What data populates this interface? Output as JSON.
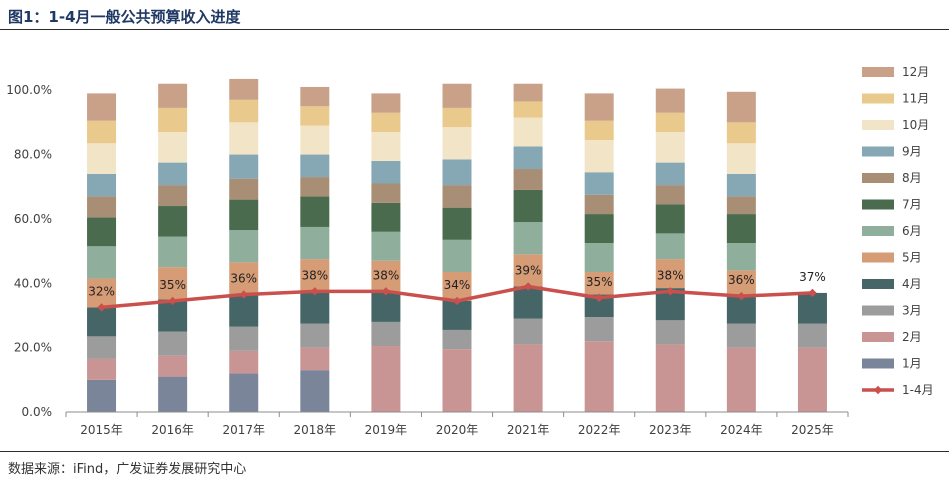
{
  "header": {
    "title": "图1：1-4月一般公共预算收入进度"
  },
  "footer": {
    "source": "数据来源：iFind，广发证券发展研究中心"
  },
  "chart_data": {
    "type": "bar",
    "stacked": true,
    "categories": [
      "2015年",
      "2016年",
      "2017年",
      "2018年",
      "2019年",
      "2020年",
      "2021年",
      "2022年",
      "2023年",
      "2024年",
      "2025年"
    ],
    "y_ticks": [
      "0.0%",
      "20.0%",
      "40.0%",
      "60.0%",
      "80.0%",
      "100.0%"
    ],
    "ylim": [
      0,
      1.1
    ],
    "legend_position": "right",
    "series": [
      {
        "name": "1月",
        "color": "#7b8599",
        "values": [
          0.1,
          0.11,
          0.12,
          0.13,
          0,
          0,
          0,
          0,
          0,
          0,
          0
        ]
      },
      {
        "name": "2月",
        "color": "#c99594",
        "values": [
          0.065,
          0.065,
          0.07,
          0.07,
          0.205,
          0.195,
          0.21,
          0.22,
          0.21,
          0.2,
          0.2
        ]
      },
      {
        "name": "3月",
        "color": "#9c9c9c",
        "values": [
          0.07,
          0.075,
          0.075,
          0.075,
          0.075,
          0.06,
          0.08,
          0.075,
          0.075,
          0.075,
          0.075
        ]
      },
      {
        "name": "4月",
        "color": "#456567",
        "values": [
          0.09,
          0.1,
          0.1,
          0.1,
          0.09,
          0.09,
          0.1,
          0.07,
          0.1,
          0.085,
          0.095
        ]
      },
      {
        "name": "5月",
        "color": "#d69c75",
        "values": [
          0.09,
          0.1,
          0.1,
          0.1,
          0.1,
          0.09,
          0.1,
          0.07,
          0.09,
          0.08,
          0
        ]
      },
      {
        "name": "6月",
        "color": "#8fae9b",
        "values": [
          0.1,
          0.095,
          0.1,
          0.1,
          0.09,
          0.1,
          0.1,
          0.09,
          0.08,
          0.085,
          0
        ]
      },
      {
        "name": "7月",
        "color": "#4a6b4e",
        "values": [
          0.09,
          0.095,
          0.095,
          0.095,
          0.09,
          0.1,
          0.1,
          0.09,
          0.09,
          0.09,
          0
        ]
      },
      {
        "name": "8月",
        "color": "#a88e74",
        "values": [
          0.065,
          0.065,
          0.065,
          0.06,
          0.06,
          0.07,
          0.065,
          0.06,
          0.06,
          0.055,
          0
        ]
      },
      {
        "name": "9月",
        "color": "#86a7b4",
        "values": [
          0.07,
          0.07,
          0.075,
          0.07,
          0.07,
          0.08,
          0.07,
          0.07,
          0.07,
          0.07,
          0
        ]
      },
      {
        "name": "10月",
        "color": "#f2e5c7",
        "values": [
          0.095,
          0.095,
          0.1,
          0.09,
          0.09,
          0.1,
          0.09,
          0.1,
          0.095,
          0.095,
          0
        ]
      },
      {
        "name": "11月",
        "color": "#eac98d",
        "values": [
          0.07,
          0.075,
          0.07,
          0.06,
          0.06,
          0.06,
          0.05,
          0.06,
          0.06,
          0.065,
          0
        ]
      },
      {
        "name": "12月",
        "color": "#c9a188",
        "values": [
          0.085,
          0.075,
          0.065,
          0.06,
          0.06,
          0.075,
          0.055,
          0.085,
          0.075,
          0.095,
          0
        ]
      }
    ],
    "line_series": {
      "name": "1-4月",
      "color": "#c9504c",
      "values": [
        0.325,
        0.345,
        0.365,
        0.375,
        0.375,
        0.345,
        0.39,
        0.355,
        0.375,
        0.36,
        0.37
      ],
      "labels": [
        "32%",
        "35%",
        "36%",
        "38%",
        "38%",
        "34%",
        "39%",
        "35%",
        "38%",
        "36%",
        "37%"
      ]
    }
  }
}
